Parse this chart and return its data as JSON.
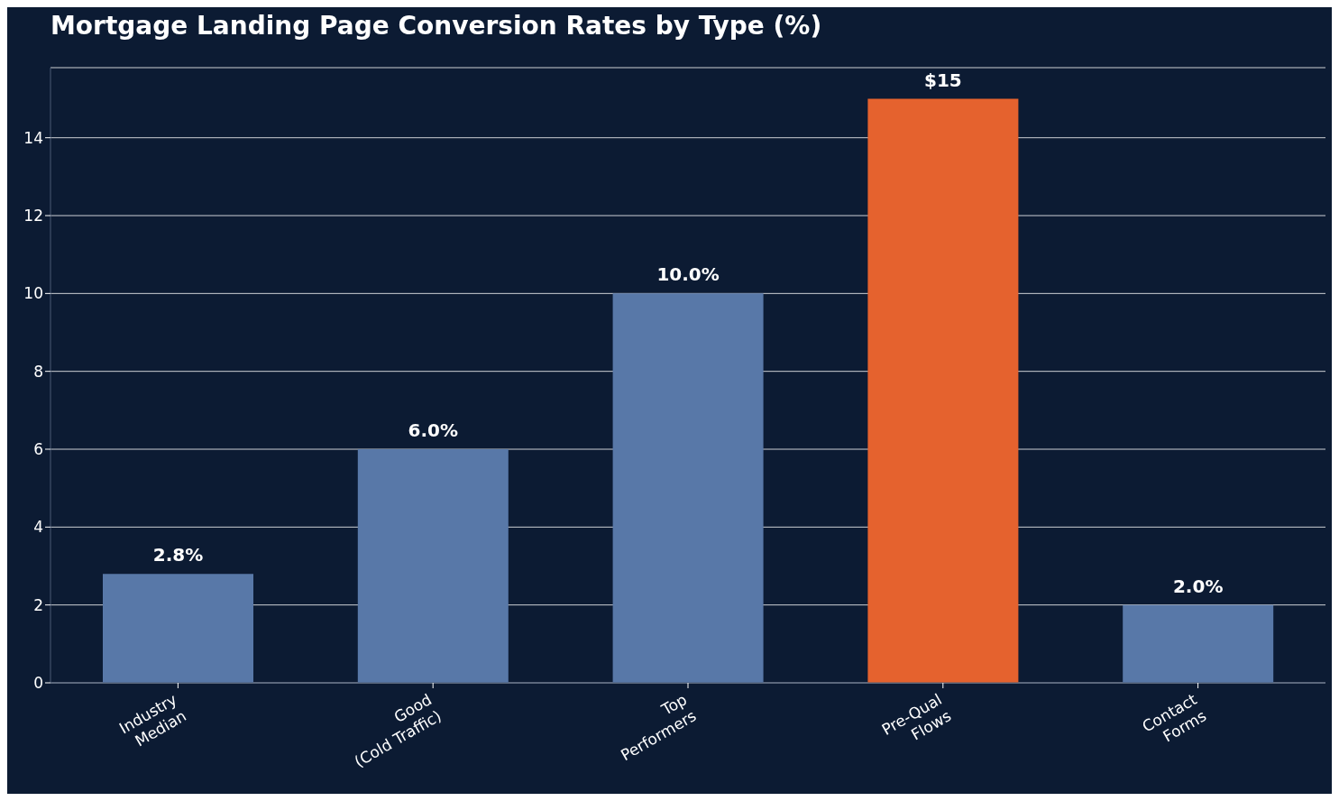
{
  "chart_data": {
    "type": "bar",
    "title": "Mortgage Landing Page Conversion Rates by Type (%)",
    "categories": [
      "Industry\nMedian",
      "Good\n(Cold Traffic)",
      "Top\nPerformers",
      "Pre-Qual\nFlows",
      "Contact\nForms"
    ],
    "values": [
      2.8,
      6.0,
      10.0,
      15,
      2.0
    ],
    "colors": [
      "#5878a8",
      "#5878a8",
      "#5878a8",
      "#e5622e",
      "#5878a8"
    ],
    "value_labels": [
      "2.8%",
      "6.0%",
      "10.0%",
      "$15",
      "2.0%"
    ],
    "ylim": [
      0,
      15.8
    ],
    "yticks": [
      0,
      2,
      4,
      6,
      8,
      10,
      12,
      14
    ],
    "grid": "y"
  }
}
